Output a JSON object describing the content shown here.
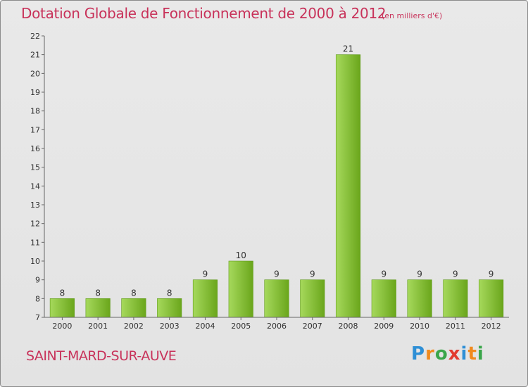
{
  "title": "Dotation Globale de Fonctionnement de 2000 à 2012",
  "subtitle": "(en milliers d'€)",
  "commune": "SAINT-MARD-SUR-AUVE",
  "logo": {
    "text": "Proxiti",
    "letters": [
      "P",
      "r",
      "o",
      "x",
      "i",
      "t",
      "i"
    ],
    "colors": [
      "#2e8fd6",
      "#f08a1e",
      "#3aa64a",
      "#e23b2e",
      "#2e8fd6",
      "#f08a1e",
      "#3aa64a"
    ]
  },
  "colors": {
    "accent": "#c8325a",
    "bar_light": "#a6d95c",
    "bar_dark": "#6aa61b",
    "background": "#e6e6e6"
  },
  "chart_data": {
    "type": "bar",
    "title": "Dotation Globale de Fonctionnement de 2000 à 2012",
    "subtitle": "(en milliers d'€)",
    "categories": [
      "2000",
      "2001",
      "2002",
      "2003",
      "2004",
      "2005",
      "2006",
      "2007",
      "2008",
      "2009",
      "2010",
      "2011",
      "2012"
    ],
    "values": [
      8,
      8,
      8,
      8,
      9,
      10,
      9,
      9,
      21,
      9,
      9,
      9,
      9
    ],
    "ylim": [
      7,
      22
    ],
    "yticks": [
      7,
      8,
      9,
      10,
      11,
      12,
      13,
      14,
      15,
      16,
      17,
      18,
      19,
      20,
      21,
      22
    ],
    "xlabel": "",
    "ylabel": "",
    "grid": false,
    "legend": "none"
  }
}
